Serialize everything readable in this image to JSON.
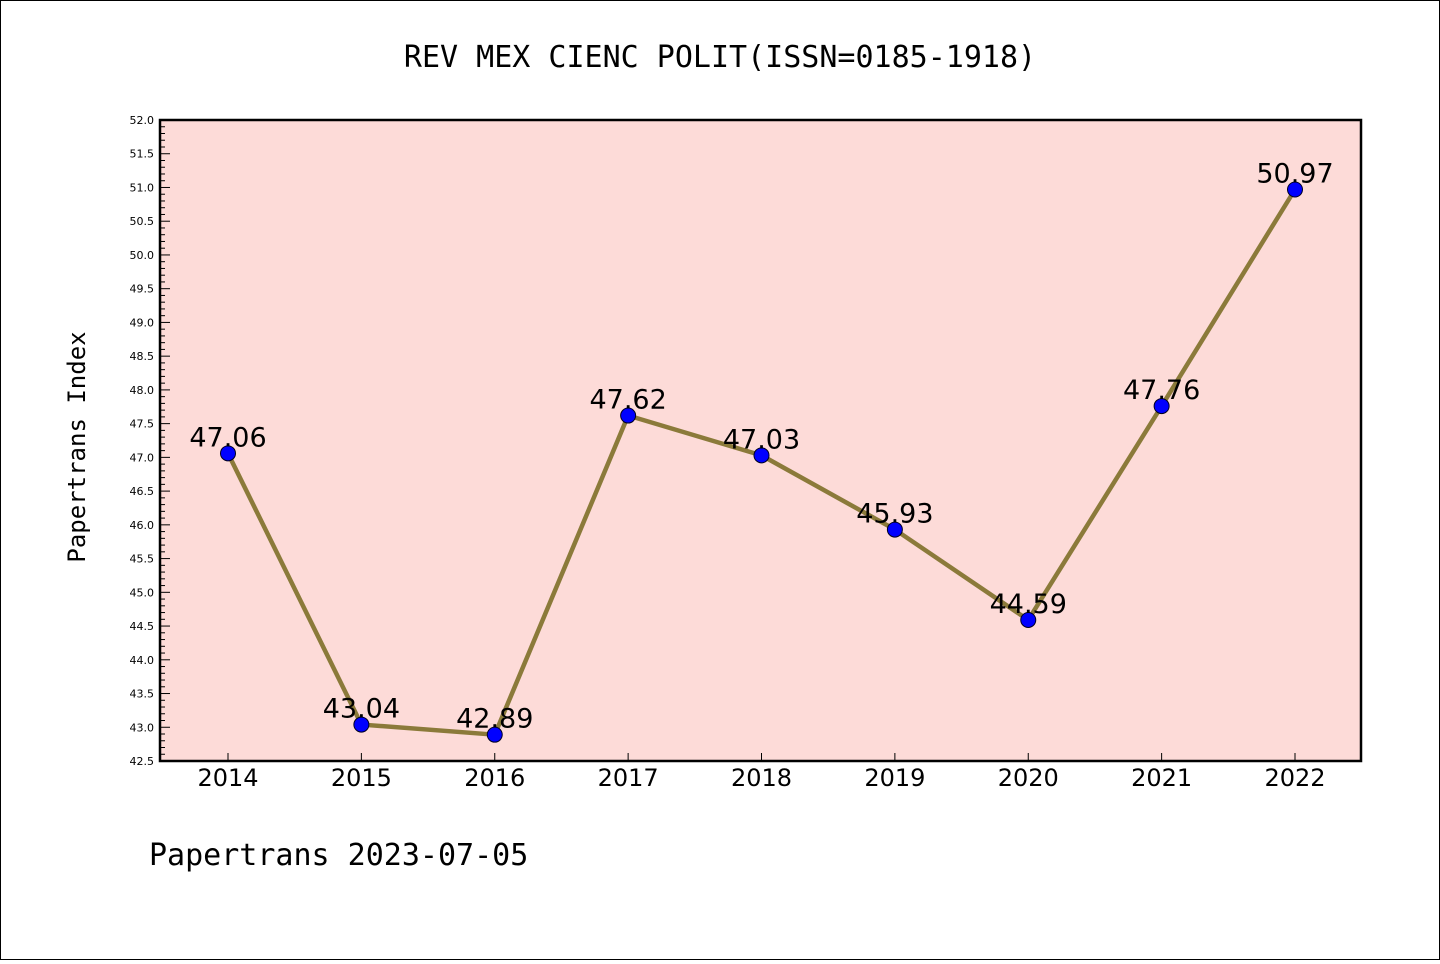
{
  "chart_data": {
    "type": "line",
    "title": "REV MEX CIENC POLIT(ISSN=0185-1918)",
    "ylabel": "Papertrans Index",
    "xlabel": "",
    "categories": [
      "2014",
      "2015",
      "2016",
      "2017",
      "2018",
      "2019",
      "2020",
      "2021",
      "2022"
    ],
    "series": [
      {
        "values": [
          47.06,
          43.04,
          42.89,
          47.62,
          47.03,
          45.93,
          44.59,
          47.76,
          50.97
        ]
      }
    ],
    "data_labels": [
      "47.06",
      "43.04",
      "42.89",
      "47.62",
      "47.03",
      "45.93",
      "44.59",
      "47.76",
      "50.97"
    ],
    "ylim": [
      42.5,
      52.0
    ],
    "yticks": [
      "42.5",
      "43.0",
      "43.5",
      "44.0",
      "44.5",
      "45.0",
      "45.5",
      "46.0",
      "46.5",
      "47.0",
      "47.5",
      "48.0",
      "48.5",
      "49.0",
      "49.5",
      "50.0",
      "50.5",
      "51.0",
      "51.5",
      "52.0"
    ],
    "grid": false,
    "colors": {
      "plot_background": "#fddbd8",
      "line": "#8b7a3a",
      "marker": "#0000ff"
    }
  },
  "footer": "Papertrans 2023-07-05"
}
